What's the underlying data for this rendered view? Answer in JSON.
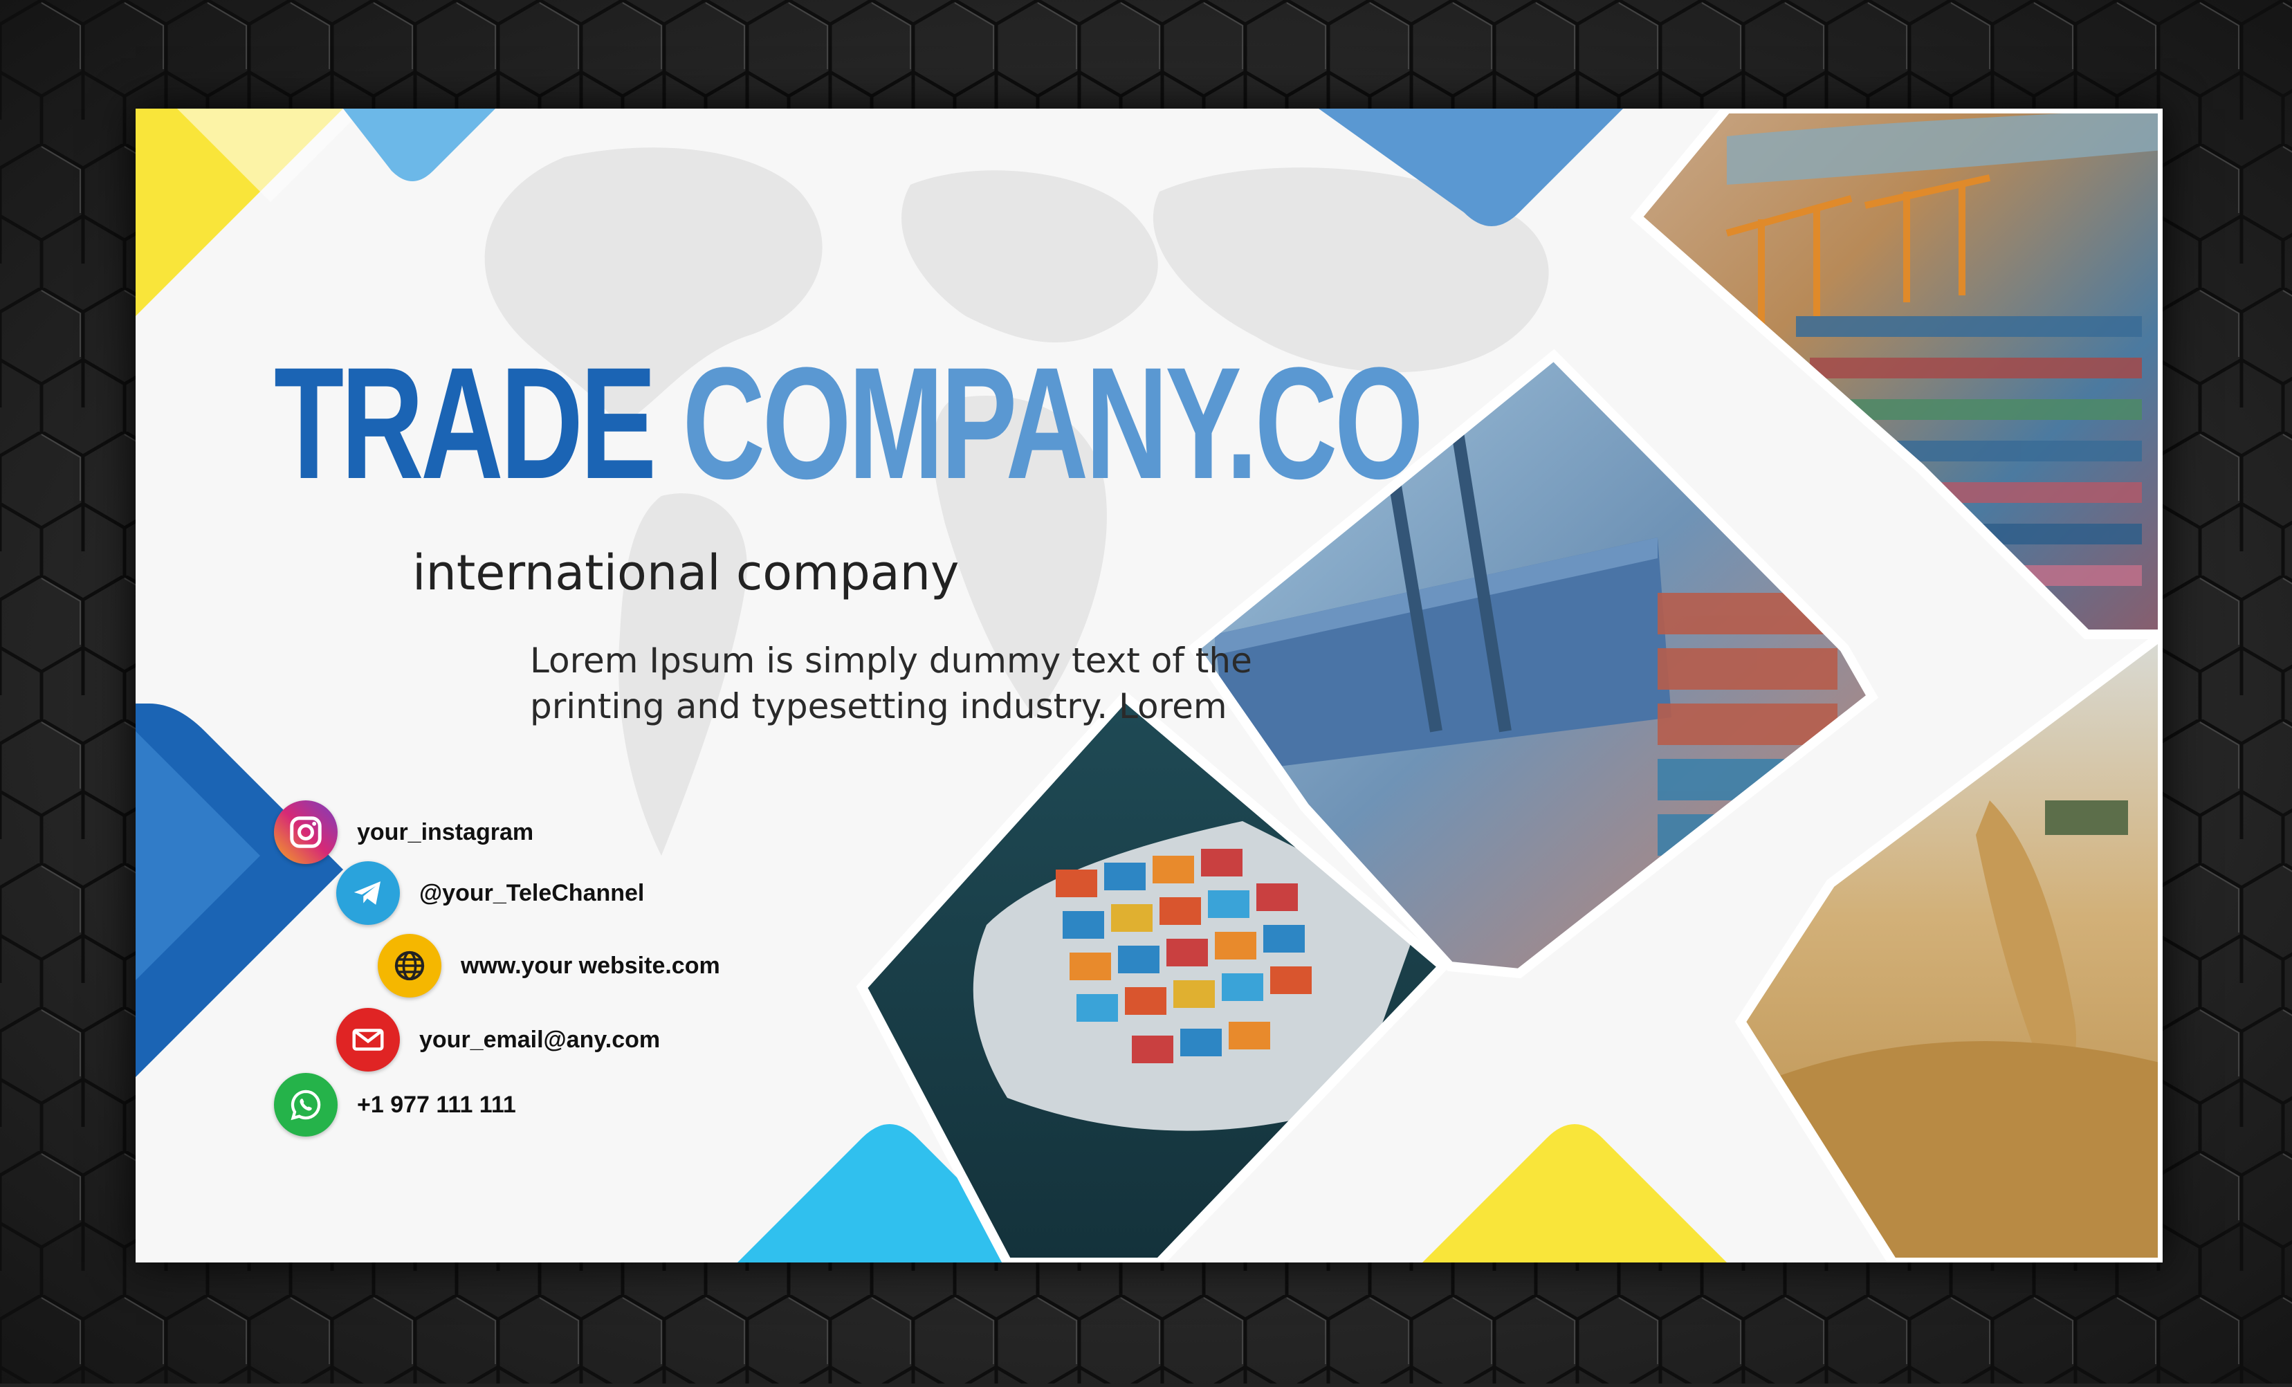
{
  "brand": {
    "title_part1": "TRADE",
    "title_part2": "COMPANY.CO",
    "subtitle": "international company",
    "description": "Lorem Ipsum is simply dummy text of the printing and typesetting industry. Lorem"
  },
  "contacts": [
    {
      "icon": "instagram-icon",
      "label": "your_instagram",
      "color": "#c13584"
    },
    {
      "icon": "telegram-icon",
      "label": "@your_TeleChannel",
      "color": "#2aa3dc"
    },
    {
      "icon": "globe-icon",
      "label": "www.your website.com",
      "color": "#f5b700"
    },
    {
      "icon": "mail-icon",
      "label": "your_email@any.com",
      "color": "#e02424"
    },
    {
      "icon": "whatsapp-icon",
      "label": "+1 977 111 111",
      "color": "#25b34a"
    }
  ],
  "colors": {
    "primary_blue": "#1b64b4",
    "light_blue": "#5a98d2",
    "cyan": "#30c0ee",
    "yellow": "#f9e53a",
    "card_background": "#f7f7f7",
    "page_background": "#232323"
  },
  "images": [
    "container-port-photo",
    "container-crane-photo",
    "cargo-ship-photo",
    "grain-photo"
  ]
}
